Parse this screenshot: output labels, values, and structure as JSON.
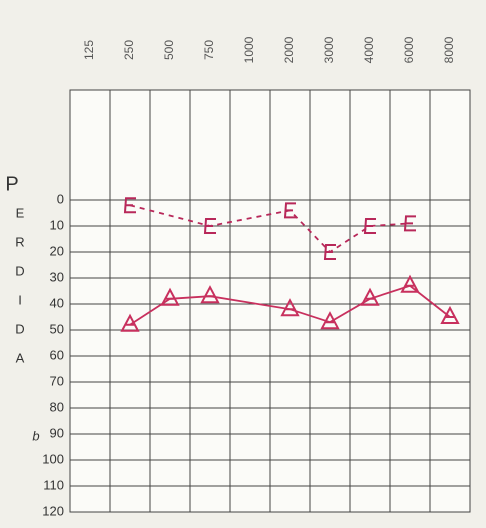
{
  "chart_data": {
    "type": "line",
    "categories": [
      "125",
      "250",
      "500",
      "750",
      "1000",
      "2000",
      "3000",
      "4000",
      "6000",
      "8000"
    ],
    "ylim": [
      0,
      120
    ],
    "yticks": [
      0,
      10,
      20,
      30,
      40,
      50,
      60,
      70,
      80,
      90,
      100,
      110,
      120
    ],
    "y_inverted": true,
    "grid": true,
    "ylabel_letters": [
      "P",
      "E",
      "R",
      "D",
      "I",
      "D",
      "A"
    ],
    "unit_label": "b",
    "series": [
      {
        "color": "#b8285a",
        "marker": "C",
        "dashed": true,
        "values": [
          null,
          2,
          null,
          10,
          null,
          4,
          20,
          10,
          9,
          null
        ]
      },
      {
        "color": "#c8305e",
        "marker": "triangle",
        "dashed": false,
        "values": [
          null,
          48,
          38,
          37,
          null,
          42,
          47,
          38,
          33,
          45
        ]
      }
    ]
  }
}
